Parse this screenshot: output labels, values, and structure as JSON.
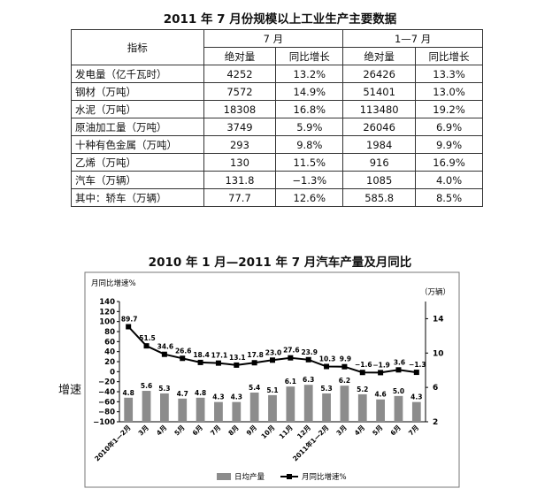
{
  "table": {
    "title": "2011 年 7 月份规模以上工业生产主要数据",
    "header_row1": {
      "indicator": "指标",
      "month": "7 月",
      "ytd": "1—7 月"
    },
    "header_row2": [
      "绝对量",
      "同比增长",
      "绝对量",
      "同比增长"
    ],
    "rows": [
      {
        "name": "发电量（亿千瓦时）",
        "m_abs": "4252",
        "m_yoy": "13.2%",
        "y_abs": "26426",
        "y_yoy": "13.3%"
      },
      {
        "name": "钢材（万吨）",
        "m_abs": "7572",
        "m_yoy": "14.9%",
        "y_abs": "51401",
        "y_yoy": "13.0%"
      },
      {
        "name": "水泥（万吨）",
        "m_abs": "18308",
        "m_yoy": "16.8%",
        "y_abs": "113480",
        "y_yoy": "19.2%"
      },
      {
        "name": "原油加工量（万吨）",
        "m_abs": "3749",
        "m_yoy": "5.9%",
        "y_abs": "26046",
        "y_yoy": "6.9%"
      },
      {
        "name": "十种有色金属（万吨）",
        "m_abs": "293",
        "m_yoy": "9.8%",
        "y_abs": "1984",
        "y_yoy": "9.9%"
      },
      {
        "name": "乙烯（万吨）",
        "m_abs": "130",
        "m_yoy": "11.5%",
        "y_abs": "916",
        "y_yoy": "16.9%"
      },
      {
        "name": "汽车（万辆）",
        "m_abs": "131.8",
        "m_yoy": "−1.3%",
        "y_abs": "1085",
        "y_yoy": "4.0%"
      },
      {
        "name": "其中：轿车（万辆）",
        "m_abs": "77.7",
        "m_yoy": "12.6%",
        "y_abs": "585.8",
        "y_yoy": "8.5%"
      }
    ]
  },
  "side_label": "增速",
  "chart_data": {
    "type": "bar",
    "title": "2010 年 1 月—2011 年 7 月汽车产量及月同比",
    "ylabel_left": "月同比增速%",
    "ylabel_right": "（万辆）",
    "categories": [
      "2010年1—2月",
      "3月",
      "4月",
      "5月",
      "6月",
      "7月",
      "8月",
      "9月",
      "10月",
      "11月",
      "12月",
      "2011年1—2月",
      "3月",
      "4月",
      "5月",
      "6月",
      "7月"
    ],
    "series": [
      {
        "name": "日均产量",
        "type": "bar",
        "axis": "right",
        "color": "#8c8c8c",
        "values": [
          4.8,
          5.6,
          5.3,
          4.7,
          4.8,
          4.3,
          4.3,
          5.4,
          5.1,
          6.1,
          6.3,
          5.3,
          6.2,
          5.2,
          4.6,
          5.0,
          4.3
        ]
      },
      {
        "name": "月同比增速%",
        "type": "line",
        "axis": "left",
        "color": "#000000",
        "values": [
          89.7,
          51.5,
          34.6,
          26.6,
          18.4,
          17.1,
          13.1,
          17.8,
          23.0,
          27.6,
          23.9,
          10.3,
          9.9,
          -1.6,
          -1.9,
          3.6,
          -1.3
        ]
      }
    ],
    "left_axis": {
      "ylim": [
        -100,
        140
      ],
      "ticks": [
        "140",
        "120",
        "100",
        "80",
        "60",
        "40",
        "20",
        "0",
        "−20",
        "−40",
        "−60",
        "−80",
        "−100"
      ]
    },
    "right_axis": {
      "ylim": [
        2,
        16
      ],
      "ticks": [
        "14",
        "10",
        "6",
        "2"
      ]
    },
    "legend": "bottom",
    "grid": false
  }
}
